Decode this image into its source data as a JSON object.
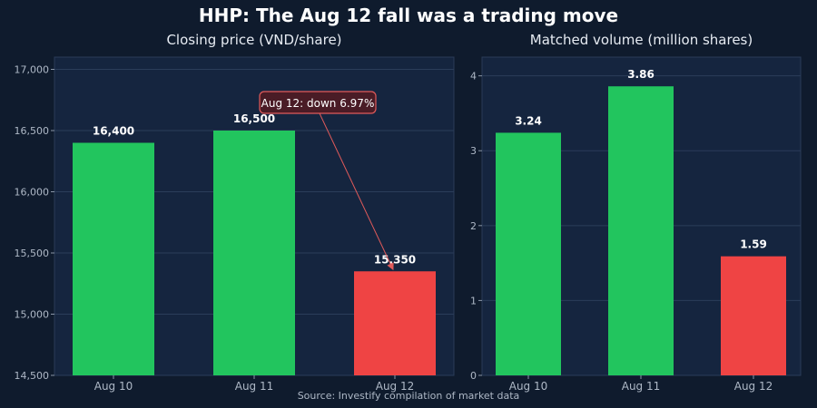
{
  "title": "HHP: The Aug 12 fall was a trading move",
  "source": "Source: Investify compilation of market data",
  "colors": {
    "background": "#0f1b2d",
    "panel": "#15253f",
    "up": "#22c55e",
    "down": "#ef4444",
    "grid": "#2b3d5a",
    "annotation_border": "#e05a5a",
    "annotation_fill": "#4a1c26"
  },
  "chart_data": [
    {
      "type": "bar",
      "title": "Closing price (VND/share)",
      "categories": [
        "Aug 10",
        "Aug 11",
        "Aug 12"
      ],
      "values": [
        16400,
        16500,
        15350
      ],
      "value_labels": [
        "16,400",
        "16,500",
        "15,350"
      ],
      "bar_colors": [
        "#22c55e",
        "#22c55e",
        "#ef4444"
      ],
      "ylim": [
        14500,
        17100
      ],
      "yticks": [
        14500,
        15000,
        15500,
        16000,
        16500,
        17000
      ],
      "ytick_labels": [
        "14,500",
        "15,000",
        "15,500",
        "16,000",
        "16,500",
        "17,000"
      ],
      "annotation": {
        "text": "Aug 12: down 6.97%",
        "target_index": 2
      },
      "grid": true
    },
    {
      "type": "bar",
      "title": "Matched volume (million shares)",
      "categories": [
        "Aug 10",
        "Aug 11",
        "Aug 12"
      ],
      "values": [
        3.24,
        3.86,
        1.59
      ],
      "value_labels": [
        "3.24",
        "3.86",
        "1.59"
      ],
      "bar_colors": [
        "#22c55e",
        "#22c55e",
        "#ef4444"
      ],
      "ylim": [
        0,
        4.25
      ],
      "yticks": [
        0,
        1,
        2,
        3,
        4
      ],
      "ytick_labels": [
        "0",
        "1",
        "2",
        "3",
        "4"
      ],
      "grid": true
    }
  ]
}
